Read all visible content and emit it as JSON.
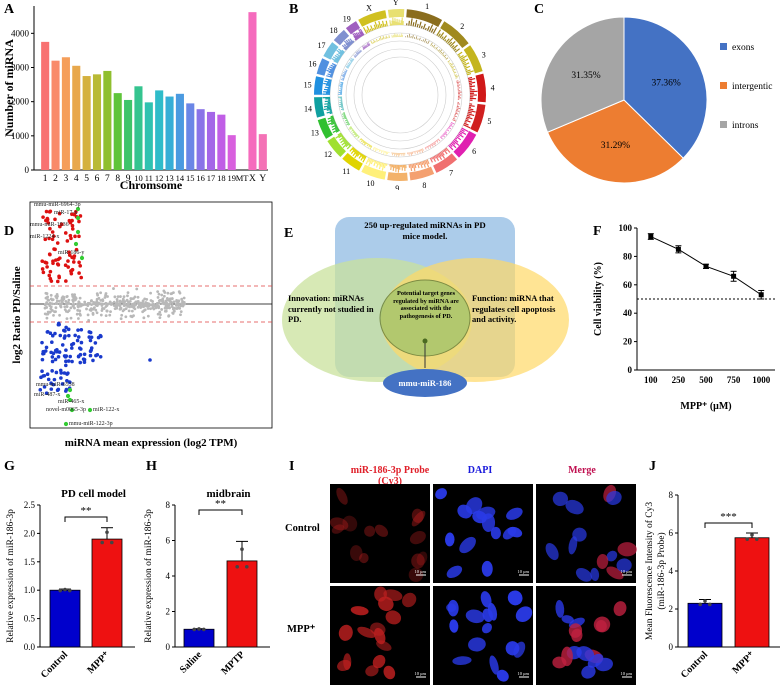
{
  "panels": {
    "A": {
      "label": "A",
      "chart_data": {
        "type": "bar",
        "title": "",
        "xlabel": "Chromsome",
        "ylabel": "Number of miRNA",
        "ylim": [
          0,
          4800
        ],
        "yticks": [
          0,
          1000,
          2000,
          3000,
          4000
        ],
        "categories": [
          "1",
          "2",
          "3",
          "4",
          "5",
          "6",
          "7",
          "8",
          "9",
          "10",
          "11",
          "12",
          "13",
          "14",
          "15",
          "16",
          "17",
          "18",
          "19",
          "MT",
          "X",
          "Y"
        ],
        "values": [
          3750,
          3200,
          3300,
          3050,
          2750,
          2800,
          2900,
          2250,
          2050,
          2450,
          1980,
          2330,
          2150,
          2230,
          1950,
          1780,
          1700,
          1620,
          1020,
          0,
          4620,
          1050
        ],
        "colors": [
          "#f87171",
          "#f98a6a",
          "#f59e5a",
          "#e8a84d",
          "#d4b13e",
          "#b9ba35",
          "#8fbf2e",
          "#5fc43a",
          "#3fc46a",
          "#35c48f",
          "#30c2b0",
          "#2fbcc9",
          "#36aed6",
          "#4b9ae0",
          "#6b86e6",
          "#8a73e8",
          "#a466e8",
          "#c05ee6",
          "#d860de",
          "#ffffff",
          "#f56bbd",
          "#f472b6"
        ]
      }
    },
    "B": {
      "label": "B",
      "chromosomes": [
        "1",
        "2",
        "3",
        "4",
        "5",
        "6",
        "7",
        "8",
        "9",
        "10",
        "11",
        "12",
        "13",
        "14",
        "15",
        "16",
        "17",
        "18",
        "19",
        "X",
        "Y"
      ]
    },
    "C": {
      "label": "C",
      "chart_data": {
        "type": "pie",
        "labels": [
          "exons",
          "intergentic",
          "introns"
        ],
        "values": [
          37.36,
          31.29,
          31.35
        ],
        "value_labels": [
          "37.36%",
          "31.29%",
          "31.35%"
        ],
        "colors": [
          "#4472c4",
          "#ed7d31",
          "#a5a5a5"
        ]
      }
    },
    "D": {
      "label": "D",
      "chart_data": {
        "type": "scatter",
        "xlabel": "miRNA mean expression (log2 TPM)",
        "ylabel": "log2 Ratio PD/Saline",
        "annotations": [
          "mmu-miR-6964-3p",
          "miR-17-x",
          "mmu-miR-1936",
          "miR-1224-x",
          "miR-186-y",
          "mmu-miR-6538",
          "miR-487-x",
          "miR-465-x",
          "novel-m0065-3p",
          "miR-122-x",
          "mmu-miR-122-3p"
        ]
      }
    },
    "E": {
      "label": "E",
      "top_box": "250 up-regulated miRNAs in PD mice model.",
      "left_circle": "Innovation: miRNAs currently not studied in PD.",
      "right_circle": "Function: miRNA that regulates cell apoptosis and activity.",
      "center": "Potential target genes regulated by miRNA are associated with the pathogenesis of PD.",
      "result": "mmu-miR-186"
    },
    "F": {
      "label": "F",
      "chart_data": {
        "type": "line",
        "xlabel": "MPP⁺ (μM)",
        "ylabel": "Cell viability (%)",
        "x": [
          "100",
          "250",
          "500",
          "750",
          "1000"
        ],
        "values": [
          94,
          85,
          73,
          66,
          53
        ],
        "errors": [
          2,
          2.5,
          1.5,
          3.5,
          3
        ],
        "ylim": [
          0,
          100
        ],
        "yticks": [
          0,
          20,
          40,
          60,
          80,
          100
        ],
        "reference_line": 50
      }
    },
    "G": {
      "label": "G",
      "chart_data": {
        "type": "bar",
        "title": "PD cell model",
        "ylabel": "Relative expression of miR-186-3p",
        "categories": [
          "Control",
          "MPP⁺"
        ],
        "values": [
          1.0,
          1.9
        ],
        "errors": [
          0.02,
          0.2
        ],
        "ylim": [
          0,
          2.5
        ],
        "yticks": [
          "0.0",
          "0.5",
          "1.0",
          "1.5",
          "2.0",
          "2.5"
        ],
        "significance": "**",
        "colors": [
          "#0000cc",
          "#ee1111"
        ]
      }
    },
    "H": {
      "label": "H",
      "chart_data": {
        "type": "bar",
        "title": "midbrain",
        "ylabel": "Relative expression of miR-186-3p",
        "categories": [
          "Saline",
          "MPTP"
        ],
        "values": [
          1.0,
          4.85
        ],
        "errors": [
          0.03,
          1.1
        ],
        "ylim": [
          0,
          8
        ],
        "yticks": [
          "0",
          "2",
          "4",
          "6",
          "8"
        ],
        "significance": "**",
        "colors": [
          "#0000cc",
          "#ee1111"
        ]
      }
    },
    "I": {
      "label": "I",
      "col_headers": [
        "miR-186-3p Probe (Cy3)",
        "DAPI",
        "Merge"
      ],
      "row_headers": [
        "Control",
        "MPP⁺"
      ],
      "scale_bar": "10 μm"
    },
    "J": {
      "label": "J",
      "chart_data": {
        "type": "bar",
        "ylabel": "Mean Fluorescence Intensity of Cy3 (miR-186-3p Probe)",
        "ylabel_line1": "Mean Fluorescence Intensity of Cy3",
        "ylabel_line2": "(miR-186-3p Probe)",
        "categories": [
          "Control",
          "MPP⁺"
        ],
        "values": [
          2.3,
          5.75
        ],
        "errors": [
          0.2,
          0.25
        ],
        "ylim": [
          0,
          8
        ],
        "yticks": [
          "0",
          "2",
          "4",
          "6",
          "8"
        ],
        "significance": "***",
        "colors": [
          "#0000cc",
          "#ee1111"
        ]
      }
    }
  }
}
